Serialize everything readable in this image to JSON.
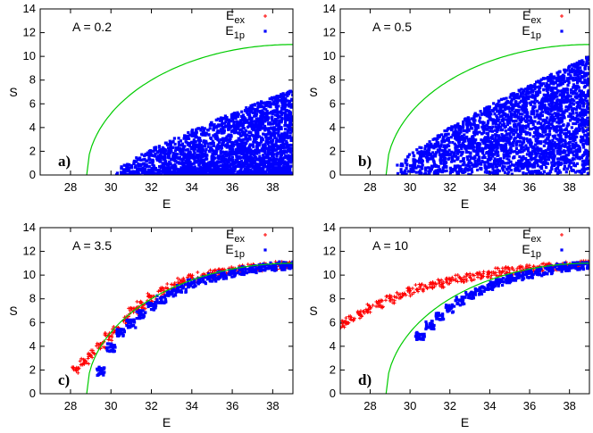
{
  "chart_data": [
    {
      "type": "scatter",
      "panel": "a)",
      "annotation": "A = 0.2",
      "xlabel": "E",
      "ylabel": "S",
      "xlim": [
        26.5,
        39
      ],
      "ylim": [
        0,
        14
      ],
      "xticks": [
        28,
        30,
        32,
        34,
        36,
        38
      ],
      "yticks": [
        0,
        2,
        4,
        6,
        8,
        10,
        12,
        14
      ],
      "legend": {
        "position": "top-right",
        "entries": [
          {
            "base": "E",
            "sub": "ex",
            "color": "#ff0000",
            "marker": "plus"
          },
          {
            "base": "E",
            "sub": "1p",
            "color": "#0000ff",
            "marker": "square"
          }
        ]
      },
      "curve": {
        "color": "#00cc00",
        "x_start": 28.8,
        "x_end": 39,
        "y_end": 11.0
      },
      "series": [
        {
          "name": "E1p",
          "color": "#0000ff",
          "marker": "square",
          "x_range": [
            30.2,
            39
          ],
          "y_max_start": 0.2,
          "y_max_end": 7.2,
          "density": "dense"
        }
      ]
    },
    {
      "type": "scatter",
      "panel": "b)",
      "annotation": "A = 0.5",
      "xlabel": "E",
      "ylabel": "S",
      "xlim": [
        26.5,
        39
      ],
      "ylim": [
        0,
        14
      ],
      "xticks": [
        28,
        30,
        32,
        34,
        36,
        38
      ],
      "yticks": [
        0,
        2,
        4,
        6,
        8,
        10,
        12,
        14
      ],
      "legend": {
        "position": "top-right",
        "entries": [
          {
            "base": "E",
            "sub": "ex",
            "color": "#ff0000",
            "marker": "plus"
          },
          {
            "base": "E",
            "sub": "1p",
            "color": "#0000ff",
            "marker": "square"
          }
        ]
      },
      "curve": {
        "color": "#00cc00",
        "x_start": 28.8,
        "x_end": 39,
        "y_end": 11.0
      },
      "series": [
        {
          "name": "E1p",
          "color": "#0000ff",
          "marker": "square",
          "x_range": [
            29.2,
            39
          ],
          "y_max_start": 0.5,
          "y_max_end": 10.0,
          "density": "dense"
        }
      ]
    },
    {
      "type": "scatter",
      "panel": "c)",
      "annotation": "A = 3.5",
      "xlabel": "E",
      "ylabel": "S",
      "xlim": [
        26.5,
        39
      ],
      "ylim": [
        0,
        14
      ],
      "xticks": [
        28,
        30,
        32,
        34,
        36,
        38
      ],
      "yticks": [
        0,
        2,
        4,
        6,
        8,
        10,
        12,
        14
      ],
      "legend": {
        "position": "top-right",
        "entries": [
          {
            "base": "E",
            "sub": "ex",
            "color": "#ff0000",
            "marker": "plus"
          },
          {
            "base": "E",
            "sub": "1p",
            "color": "#0000ff",
            "marker": "square"
          }
        ]
      },
      "curve": {
        "color": "#00cc00",
        "x_start": 28.8,
        "x_end": 39,
        "y_end": 11.0
      },
      "series": [
        {
          "name": "Eex",
          "color": "#ff0000",
          "marker": "plus",
          "points": [
            [
              28.3,
              2.2
            ],
            [
              28.7,
              2.8
            ],
            [
              29.1,
              3.5
            ],
            [
              29.5,
              4.2
            ],
            [
              29.9,
              4.9
            ],
            [
              30.3,
              5.6
            ],
            [
              30.7,
              6.3
            ],
            [
              31.1,
              7.0
            ],
            [
              31.5,
              7.6
            ],
            [
              32.0,
              8.2
            ],
            [
              32.5,
              8.7
            ],
            [
              33.0,
              9.2
            ],
            [
              33.5,
              9.5
            ],
            [
              34.0,
              9.8
            ],
            [
              34.5,
              10.0
            ],
            [
              35.0,
              10.2
            ],
            [
              35.5,
              10.4
            ],
            [
              36.0,
              10.5
            ],
            [
              36.5,
              10.6
            ],
            [
              37.0,
              10.7
            ],
            [
              37.5,
              10.8
            ],
            [
              38.0,
              10.9
            ],
            [
              38.5,
              10.9
            ],
            [
              39.0,
              11.0
            ]
          ]
        },
        {
          "name": "E1p",
          "color": "#0000ff",
          "marker": "square",
          "points": [
            [
              29.5,
              2.0
            ],
            [
              30.0,
              4.0
            ],
            [
              30.5,
              5.2
            ],
            [
              31.0,
              6.0
            ],
            [
              31.5,
              6.8
            ],
            [
              32.0,
              7.5
            ],
            [
              32.5,
              8.1
            ],
            [
              33.0,
              8.6
            ],
            [
              33.5,
              9.0
            ],
            [
              34.0,
              9.4
            ],
            [
              34.5,
              9.7
            ],
            [
              35.0,
              9.9
            ],
            [
              35.5,
              10.1
            ],
            [
              36.0,
              10.3
            ],
            [
              36.5,
              10.5
            ],
            [
              37.0,
              10.6
            ],
            [
              37.5,
              10.7
            ],
            [
              38.0,
              10.8
            ],
            [
              38.5,
              10.9
            ],
            [
              39.0,
              10.9
            ]
          ]
        }
      ]
    },
    {
      "type": "scatter",
      "panel": "d)",
      "annotation": "A = 10",
      "xlabel": "E",
      "ylabel": "S",
      "xlim": [
        26.5,
        39
      ],
      "ylim": [
        0,
        14
      ],
      "xticks": [
        28,
        30,
        32,
        34,
        36,
        38
      ],
      "yticks": [
        0,
        2,
        4,
        6,
        8,
        10,
        12,
        14
      ],
      "legend": {
        "position": "top-right",
        "entries": [
          {
            "base": "E",
            "sub": "ex",
            "color": "#ff0000",
            "marker": "plus"
          },
          {
            "base": "E",
            "sub": "1p",
            "color": "#0000ff",
            "marker": "square"
          }
        ]
      },
      "curve": {
        "color": "#00cc00",
        "x_start": 28.8,
        "x_end": 39,
        "y_end": 11.0
      },
      "series": [
        {
          "name": "Eex",
          "color": "#ff0000",
          "marker": "plus",
          "points": [
            [
              26.6,
              5.9
            ],
            [
              27.0,
              6.3
            ],
            [
              27.5,
              6.8
            ],
            [
              28.0,
              7.3
            ],
            [
              28.5,
              7.7
            ],
            [
              29.0,
              8.1
            ],
            [
              29.5,
              8.4
            ],
            [
              30.0,
              8.7
            ],
            [
              30.5,
              9.0
            ],
            [
              31.0,
              9.2
            ],
            [
              31.5,
              9.4
            ],
            [
              32.0,
              9.6
            ],
            [
              32.5,
              9.8
            ],
            [
              33.0,
              9.95
            ],
            [
              33.5,
              10.1
            ],
            [
              34.0,
              10.2
            ],
            [
              34.5,
              10.35
            ],
            [
              35.0,
              10.45
            ],
            [
              35.5,
              10.55
            ],
            [
              36.0,
              10.65
            ],
            [
              36.5,
              10.75
            ],
            [
              37.0,
              10.8
            ],
            [
              37.5,
              10.85
            ],
            [
              38.0,
              10.9
            ],
            [
              38.5,
              10.95
            ],
            [
              39.0,
              11.0
            ]
          ]
        },
        {
          "name": "E1p",
          "color": "#0000ff",
          "marker": "square",
          "points": [
            [
              30.5,
              5.0
            ],
            [
              31.0,
              5.9
            ],
            [
              31.5,
              6.6
            ],
            [
              32.0,
              7.3
            ],
            [
              32.5,
              7.9
            ],
            [
              33.0,
              8.4
            ],
            [
              33.5,
              8.8
            ],
            [
              34.0,
              9.2
            ],
            [
              34.5,
              9.5
            ],
            [
              35.0,
              9.8
            ],
            [
              35.5,
              10.0
            ],
            [
              36.0,
              10.2
            ],
            [
              36.5,
              10.4
            ],
            [
              37.0,
              10.55
            ],
            [
              37.5,
              10.7
            ],
            [
              38.0,
              10.8
            ],
            [
              38.5,
              10.9
            ],
            [
              39.0,
              11.0
            ]
          ]
        }
      ]
    }
  ]
}
